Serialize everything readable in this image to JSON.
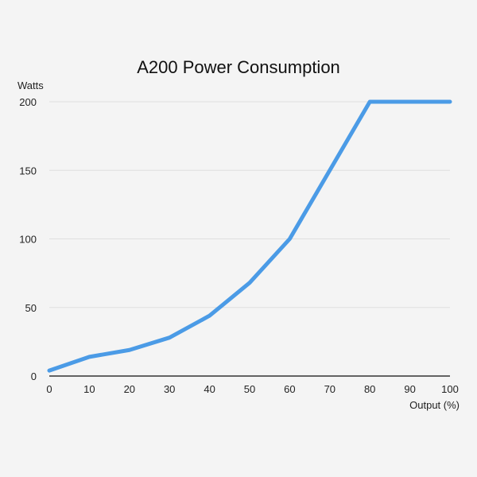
{
  "chart_data": {
    "type": "line",
    "title": "A200 Power Consumption",
    "xlabel": "Output (%)",
    "ylabel": "Watts",
    "x": [
      0,
      10,
      20,
      30,
      40,
      50,
      60,
      70,
      80,
      90,
      100
    ],
    "series": [
      {
        "values": [
          4,
          14,
          19,
          28,
          44,
          68,
          100,
          150,
          200,
          200,
          200
        ],
        "color": "#4b9be6"
      }
    ],
    "xlim": [
      0,
      100
    ],
    "ylim": [
      0,
      200
    ],
    "xticks": [
      "0",
      "10",
      "20",
      "30",
      "40",
      "50",
      "60",
      "70",
      "80",
      "90",
      "100"
    ],
    "yticks": [
      "0",
      "50",
      "100",
      "150",
      "200"
    ],
    "grid": "horizontal",
    "legend": "none"
  }
}
